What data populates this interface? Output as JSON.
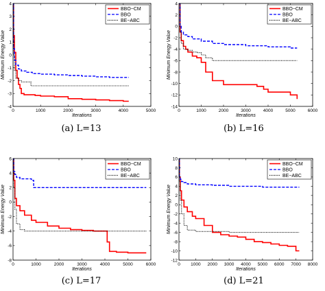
{
  "chart_data": [
    {
      "type": "line",
      "caption": "(a) L=13",
      "xlabel": "Iterations",
      "ylabel": "Minimum Energy Value",
      "xlim": [
        0,
        5000
      ],
      "ylim": [
        -4,
        4
      ],
      "xticks": [
        0,
        1000,
        2000,
        3000,
        4000,
        5000
      ],
      "yticks": [
        -4,
        -3,
        -2,
        -1,
        0,
        1,
        2,
        3,
        4
      ],
      "legend_position": "top-right",
      "series": [
        {
          "name": "BBO−CM",
          "color": "#ff0000",
          "style": "solid",
          "x": [
            0,
            20,
            50,
            100,
            150,
            200,
            250,
            300,
            400,
            600,
            800,
            1000,
            1500,
            2000,
            2500,
            3000,
            3500,
            4000,
            4200
          ],
          "y": [
            4,
            1.5,
            0.2,
            -1.2,
            -1.8,
            -2.3,
            -2.6,
            -3.0,
            -3.1,
            -3.1,
            -3.15,
            -3.2,
            -3.25,
            -3.4,
            -3.45,
            -3.5,
            -3.55,
            -3.6,
            -3.6
          ]
        },
        {
          "name": "BBO",
          "color": "#0000ff",
          "style": "dashed",
          "x": [
            0,
            20,
            50,
            100,
            200,
            300,
            500,
            700,
            1000,
            1500,
            2000,
            2500,
            3000,
            3500,
            4000,
            4200
          ],
          "y": [
            4,
            0.5,
            -0.4,
            -0.8,
            -1.1,
            -1.25,
            -1.35,
            -1.45,
            -1.5,
            -1.55,
            -1.6,
            -1.65,
            -1.7,
            -1.75,
            -1.75,
            -1.75
          ]
        },
        {
          "name": "BE−ABC",
          "color": "#000000",
          "style": "dotted",
          "x": [
            0,
            20,
            50,
            100,
            200,
            300,
            500,
            600,
            650,
            700,
            1000,
            2000,
            3000,
            4200
          ],
          "y": [
            4,
            0,
            -1.2,
            -1.8,
            -2.0,
            -2.1,
            -2.1,
            -2.1,
            -2.4,
            -2.4,
            -2.4,
            -2.4,
            -2.4,
            -2.4
          ]
        }
      ]
    },
    {
      "type": "line",
      "caption": "(b) L=16",
      "xlabel": "Iterations",
      "ylabel": "Minimum Energy Value",
      "xlim": [
        0,
        6000
      ],
      "ylim": [
        -14,
        4
      ],
      "xticks": [
        0,
        1000,
        2000,
        3000,
        4000,
        5000,
        6000
      ],
      "yticks": [
        -14,
        -12,
        -10,
        -8,
        -6,
        -4,
        -2,
        0,
        2,
        4
      ],
      "legend_position": "top-right",
      "series": [
        {
          "name": "BBO−CM",
          "color": "#ff0000",
          "style": "solid",
          "x": [
            0,
            50,
            100,
            200,
            300,
            400,
            600,
            800,
            1000,
            1200,
            1500,
            2000,
            2500,
            3000,
            3500,
            3800,
            4000,
            4500,
            5000,
            5300
          ],
          "y": [
            4,
            -1,
            -2.5,
            -3.5,
            -4.0,
            -4.5,
            -5.2,
            -5.5,
            -6.3,
            -8.0,
            -9.5,
            -10.2,
            -10.2,
            -10.2,
            -10.5,
            -11.0,
            -11.5,
            -11.5,
            -12.0,
            -12.7
          ]
        },
        {
          "name": "BBO",
          "color": "#0000ff",
          "style": "dashed",
          "x": [
            0,
            50,
            100,
            200,
            400,
            600,
            1000,
            1500,
            2000,
            3000,
            4000,
            5000,
            5300
          ],
          "y": [
            4,
            0,
            -1.0,
            -1.5,
            -1.8,
            -2.2,
            -2.6,
            -3.0,
            -3.2,
            -3.4,
            -3.6,
            -3.8,
            -3.8
          ]
        },
        {
          "name": "BE−ABC",
          "color": "#000000",
          "style": "dotted",
          "x": [
            0,
            50,
            100,
            200,
            400,
            600,
            800,
            1000,
            1200,
            1500,
            2000,
            3000,
            4000,
            5300
          ],
          "y": [
            4,
            -1,
            -3.0,
            -4.0,
            -4.2,
            -4.5,
            -4.6,
            -5.0,
            -5.5,
            -6.0,
            -6.0,
            -6.0,
            -6.0,
            -6.0
          ]
        }
      ]
    },
    {
      "type": "line",
      "caption": "(c) L=17",
      "xlabel": "Iterations",
      "ylabel": "Minimum Energy Value",
      "xlim": [
        0,
        6000
      ],
      "ylim": [
        -8,
        6
      ],
      "xticks": [
        0,
        1000,
        2000,
        3000,
        4000,
        5000,
        6000
      ],
      "yticks": [
        -8,
        -6,
        -4,
        -2,
        0,
        2,
        4,
        6
      ],
      "legend_position": "top-right",
      "series": [
        {
          "name": "BBO−CM",
          "color": "#ff0000",
          "style": "solid",
          "x": [
            0,
            30,
            80,
            150,
            300,
            500,
            800,
            1000,
            1500,
            2000,
            2500,
            3000,
            3500,
            4000,
            4100,
            4200,
            4500,
            5000,
            5800
          ],
          "y": [
            6,
            3,
            0.5,
            -0.5,
            -1.2,
            -1.8,
            -2.5,
            -2.8,
            -3.3,
            -3.6,
            -3.8,
            -3.9,
            -4.0,
            -4.0,
            -5.5,
            -6.8,
            -6.9,
            -7.0,
            -7.0
          ]
        },
        {
          "name": "BBO",
          "color": "#0000ff",
          "style": "dashed",
          "x": [
            0,
            30,
            80,
            150,
            300,
            600,
            800,
            900,
            1000,
            2000,
            3000,
            4000,
            5000,
            5800
          ],
          "y": [
            6,
            4.2,
            3.8,
            3.4,
            3.2,
            3.2,
            3.0,
            2.0,
            2.0,
            2.0,
            2.0,
            2.0,
            2.0,
            2.0
          ]
        },
        {
          "name": "BE−ABC",
          "color": "#000000",
          "style": "dotted",
          "x": [
            0,
            30,
            80,
            150,
            300,
            500,
            1000,
            2000,
            3000,
            4000,
            5000,
            5800
          ],
          "y": [
            6,
            2.0,
            -1.0,
            -3.0,
            -3.8,
            -4.0,
            -4.0,
            -4.0,
            -4.0,
            -4.0,
            -4.0,
            -4.0
          ]
        }
      ]
    },
    {
      "type": "line",
      "caption": "(d) L=21",
      "xlabel": "Iterations",
      "ylabel": "Minimum Energy Value",
      "xlim": [
        0,
        8000
      ],
      "ylim": [
        -12,
        10
      ],
      "xticks": [
        0,
        1000,
        2000,
        3000,
        4000,
        5000,
        6000,
        7000,
        8000
      ],
      "yticks": [
        -12,
        -10,
        -8,
        -6,
        -4,
        -2,
        0,
        2,
        4,
        6,
        8,
        10
      ],
      "legend_position": "top-right",
      "series": [
        {
          "name": "BBO−CM",
          "color": "#ff0000",
          "style": "solid",
          "x": [
            0,
            30,
            80,
            150,
            300,
            500,
            800,
            1000,
            1500,
            2000,
            2500,
            3000,
            3500,
            4000,
            4500,
            5000,
            5500,
            6000,
            6500,
            7000,
            7200
          ],
          "y": [
            10,
            6,
            3,
            1,
            -0.5,
            -1.5,
            -2.5,
            -3.0,
            -4.5,
            -6.0,
            -6.5,
            -6.8,
            -7.0,
            -7.5,
            -8.0,
            -8.2,
            -8.5,
            -8.8,
            -9.0,
            -10.0,
            -10.0
          ]
        },
        {
          "name": "BBO",
          "color": "#0000ff",
          "style": "dashed",
          "x": [
            0,
            30,
            80,
            150,
            300,
            500,
            1000,
            2000,
            3000,
            4000,
            5000,
            6000,
            7000,
            7200
          ],
          "y": [
            10,
            6.0,
            5.5,
            5.0,
            4.8,
            4.5,
            4.3,
            4.2,
            4.0,
            4.0,
            3.8,
            3.8,
            3.8,
            3.8
          ]
        },
        {
          "name": "BE−ABC",
          "color": "#000000",
          "style": "dotted",
          "x": [
            0,
            30,
            80,
            150,
            300,
            500,
            1000,
            1500,
            2000,
            3000,
            4000,
            5000,
            6000,
            7200
          ],
          "y": [
            10,
            5,
            1,
            -2.0,
            -4.5,
            -5.5,
            -5.8,
            -5.8,
            -5.8,
            -6.0,
            -6.0,
            -6.0,
            -6.0,
            -6.0
          ]
        }
      ]
    }
  ]
}
